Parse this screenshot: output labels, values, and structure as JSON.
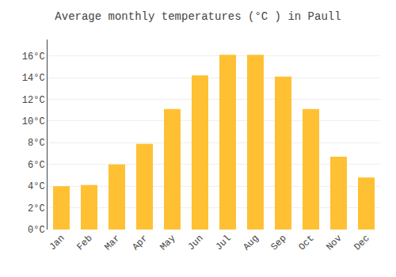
{
  "chart_data": {
    "type": "bar",
    "title": "Average monthly temperatures (°C ) in Paull",
    "categories": [
      "Jan",
      "Feb",
      "Mar",
      "Apr",
      "May",
      "Jun",
      "Jul",
      "Aug",
      "Sep",
      "Oct",
      "Nov",
      "Dec"
    ],
    "values": [
      4.0,
      4.1,
      6.0,
      7.9,
      11.1,
      14.2,
      16.1,
      16.1,
      14.1,
      11.1,
      6.7,
      4.8
    ],
    "color": "#FFC133",
    "ylim": [
      0,
      17.5
    ],
    "yticks": [
      {
        "value": 0,
        "label": "0°C"
      },
      {
        "value": 2,
        "label": "2°C"
      },
      {
        "value": 4,
        "label": "4°C"
      },
      {
        "value": 6,
        "label": "6°C"
      },
      {
        "value": 8,
        "label": "8°C"
      },
      {
        "value": 10,
        "label": "10°C"
      },
      {
        "value": 12,
        "label": "12°C"
      },
      {
        "value": 14,
        "label": "14°C"
      },
      {
        "value": 16,
        "label": "16°C"
      }
    ],
    "grid": true
  }
}
